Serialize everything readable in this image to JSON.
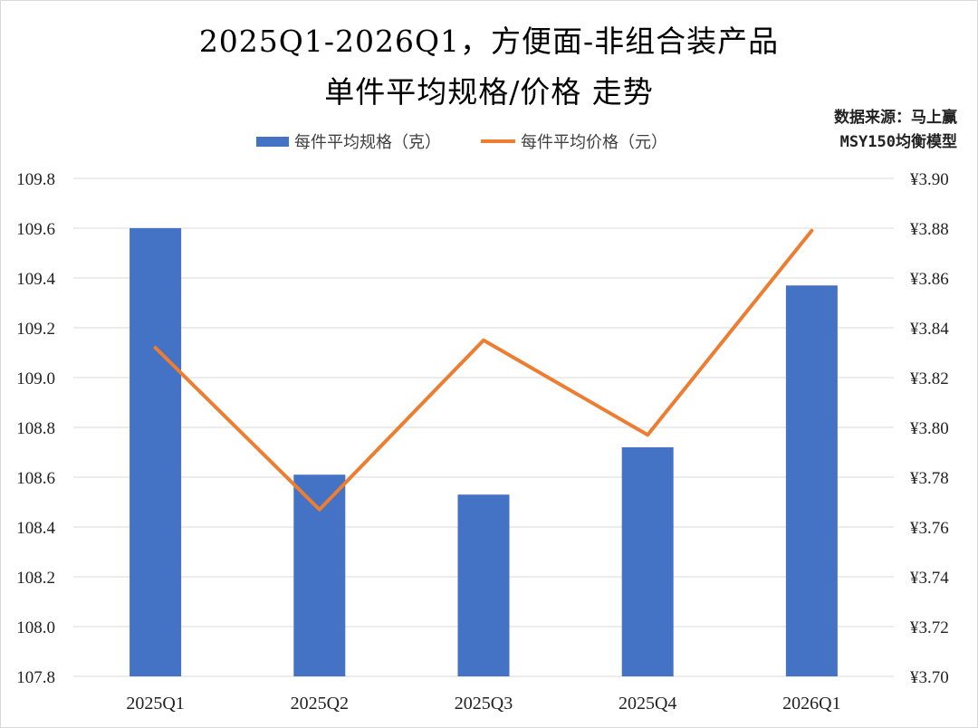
{
  "title": {
    "line1": "2025Q1-2026Q1，方便面-非组合装产品",
    "line2": "单件平均规格/价格 走势"
  },
  "source": {
    "line1": "数据来源：马上赢",
    "line2": "MSY150均衡模型"
  },
  "colors": {
    "bar": "#4472C4",
    "line": "#ED7D31",
    "grid": "#D9D9D9"
  },
  "chart_data": {
    "type": "bar",
    "categories": [
      "2025Q1",
      "2025Q2",
      "2025Q3",
      "2025Q4",
      "2026Q1"
    ],
    "series": [
      {
        "name": "每件平均规格（克）",
        "type": "bar",
        "axis": "left",
        "values": [
          109.6,
          108.61,
          108.53,
          108.72,
          109.37
        ]
      },
      {
        "name": "每件平均价格（元）",
        "type": "line",
        "axis": "right",
        "values": [
          3.832,
          3.767,
          3.835,
          3.797,
          3.879
        ]
      }
    ],
    "y_left": {
      "min": 107.8,
      "max": 109.8,
      "ticks": [
        "107.8",
        "108.0",
        "108.2",
        "108.4",
        "108.6",
        "108.8",
        "109.0",
        "109.2",
        "109.4",
        "109.6",
        "109.8"
      ]
    },
    "y_right": {
      "min": 3.7,
      "max": 3.9,
      "ticks": [
        "¥3.70",
        "¥3.72",
        "¥3.74",
        "¥3.76",
        "¥3.78",
        "¥3.80",
        "¥3.82",
        "¥3.84",
        "¥3.86",
        "¥3.88",
        "¥3.90"
      ]
    },
    "grid": true,
    "legend_position": "top"
  }
}
